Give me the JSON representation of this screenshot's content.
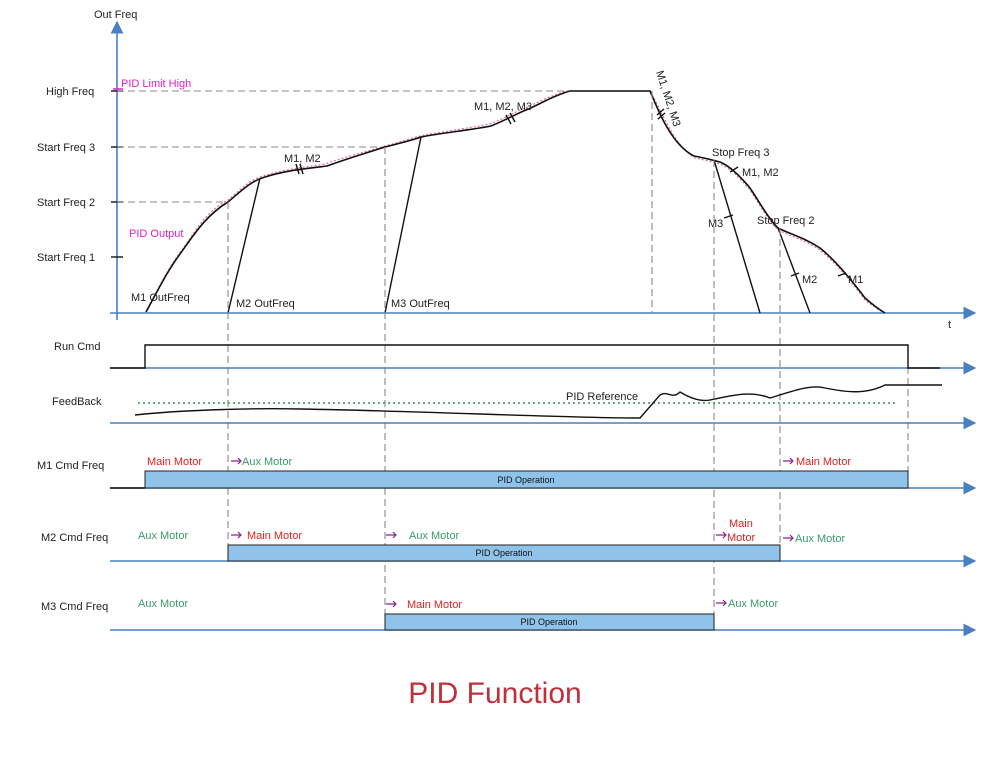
{
  "title": "PID Function",
  "freq_axis": {
    "y_label": "Out Freq",
    "x_label": "t",
    "levels": [
      "High Freq",
      "Start Freq 3",
      "Start Freq 2",
      "Start Freq 1"
    ]
  },
  "freq_annotations": {
    "pid_limit_high": "PID Limit High",
    "pid_output": "PID Output",
    "m1_outfreq": "M1 OutFreq",
    "m2_outfreq": "M2 OutFreq",
    "m3_outfreq": "M3 OutFreq",
    "m1_m2": "M1, M2",
    "m1_m2_m3": "M1, M2, M3",
    "m1_m2_m3_decel": "M1, M2, M3",
    "stop_freq_3": "Stop Freq 3",
    "m1_m2_after_stop3": "M1, M2",
    "m3": "M3",
    "stop_freq_2": "Stop Freq 2",
    "m2": "M2",
    "m1": "M1"
  },
  "signals": {
    "run_cmd": "Run Cmd",
    "feedback": "FeedBack",
    "pid_reference": "PID Reference",
    "m1_cmd": "M1 Cmd Freq",
    "m2_cmd": "M2 Cmd Freq",
    "m3_cmd": "M3 Cmd Freq"
  },
  "m1_labels": {
    "main_1": "Main Motor",
    "aux_1": "Aux Motor",
    "main_2": "Main Motor",
    "bar": "PID Operation"
  },
  "m2_labels": {
    "aux_1": "Aux Motor",
    "main_1": "Main Motor",
    "aux_2": "Aux Motor",
    "main_2a": "Main",
    "main_2b": "Motor",
    "aux_3": "Aux Motor",
    "bar": "PID Operation"
  },
  "m3_labels": {
    "aux_1": "Aux Motor",
    "main_1": "Main Motor",
    "aux_2": "Aux Motor",
    "bar": "PID Operation"
  },
  "colors": {
    "axis": "#4a7fc1",
    "pid_annotation": "#e020c8",
    "main_motor": "#e02020",
    "aux_motor": "#3a9a6a",
    "transition_arrow": "#8a2090",
    "pid_bar": "#8fc3ea",
    "title": "#c0303a"
  }
}
